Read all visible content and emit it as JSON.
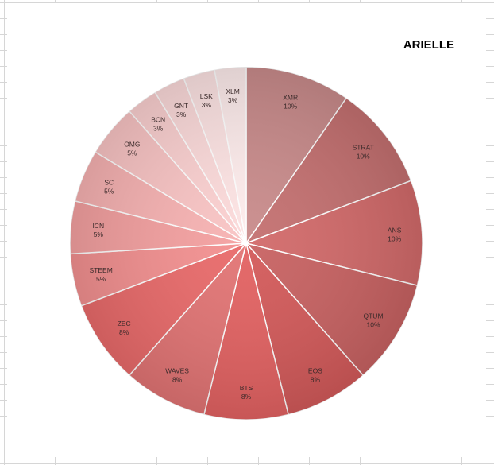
{
  "chart_data": {
    "type": "pie",
    "title": "ARIELLE",
    "slices": [
      {
        "label": "XMR",
        "value": 10,
        "pct_text": "10%",
        "color": "#c98b8b"
      },
      {
        "label": "STRAT",
        "value": 10,
        "pct_text": "10%",
        "color": "#c47070"
      },
      {
        "label": "ANS",
        "value": 10,
        "pct_text": "10%",
        "color": "#d26a6a"
      },
      {
        "label": "QTUM",
        "value": 10,
        "pct_text": "10%",
        "color": "#c86262"
      },
      {
        "label": "EOS",
        "value": 8,
        "pct_text": "8%",
        "color": "#d35a5a"
      },
      {
        "label": "BTS",
        "value": 8,
        "pct_text": "8%",
        "color": "#e36262"
      },
      {
        "label": "WAVES",
        "value": 8,
        "pct_text": "8%",
        "color": "#e27474"
      },
      {
        "label": "ZEC",
        "value": 8,
        "pct_text": "8%",
        "color": "#e96a6a"
      },
      {
        "label": "STEEM",
        "value": 5,
        "pct_text": "5%",
        "color": "#f39090"
      },
      {
        "label": "ICN",
        "value": 5,
        "pct_text": "5%",
        "color": "#f4a0a0"
      },
      {
        "label": "SC",
        "value": 5,
        "pct_text": "5%",
        "color": "#f7b2b2"
      },
      {
        "label": "OMG",
        "value": 5,
        "pct_text": "5%",
        "color": "#f9c4c4"
      },
      {
        "label": "BCN",
        "value": 3,
        "pct_text": "3%",
        "color": "#fbd0d0"
      },
      {
        "label": "GNT",
        "value": 3,
        "pct_text": "3%",
        "color": "#fcdada"
      },
      {
        "label": "LSK",
        "value": 3,
        "pct_text": "3%",
        "color": "#fde3e3"
      },
      {
        "label": "XLM",
        "value": 3,
        "pct_text": "3%",
        "color": "#feecec"
      }
    ],
    "start_angle": "12 o'clock",
    "direction": "clockwise",
    "legend": "none",
    "data_labels": "category name and percentage"
  }
}
